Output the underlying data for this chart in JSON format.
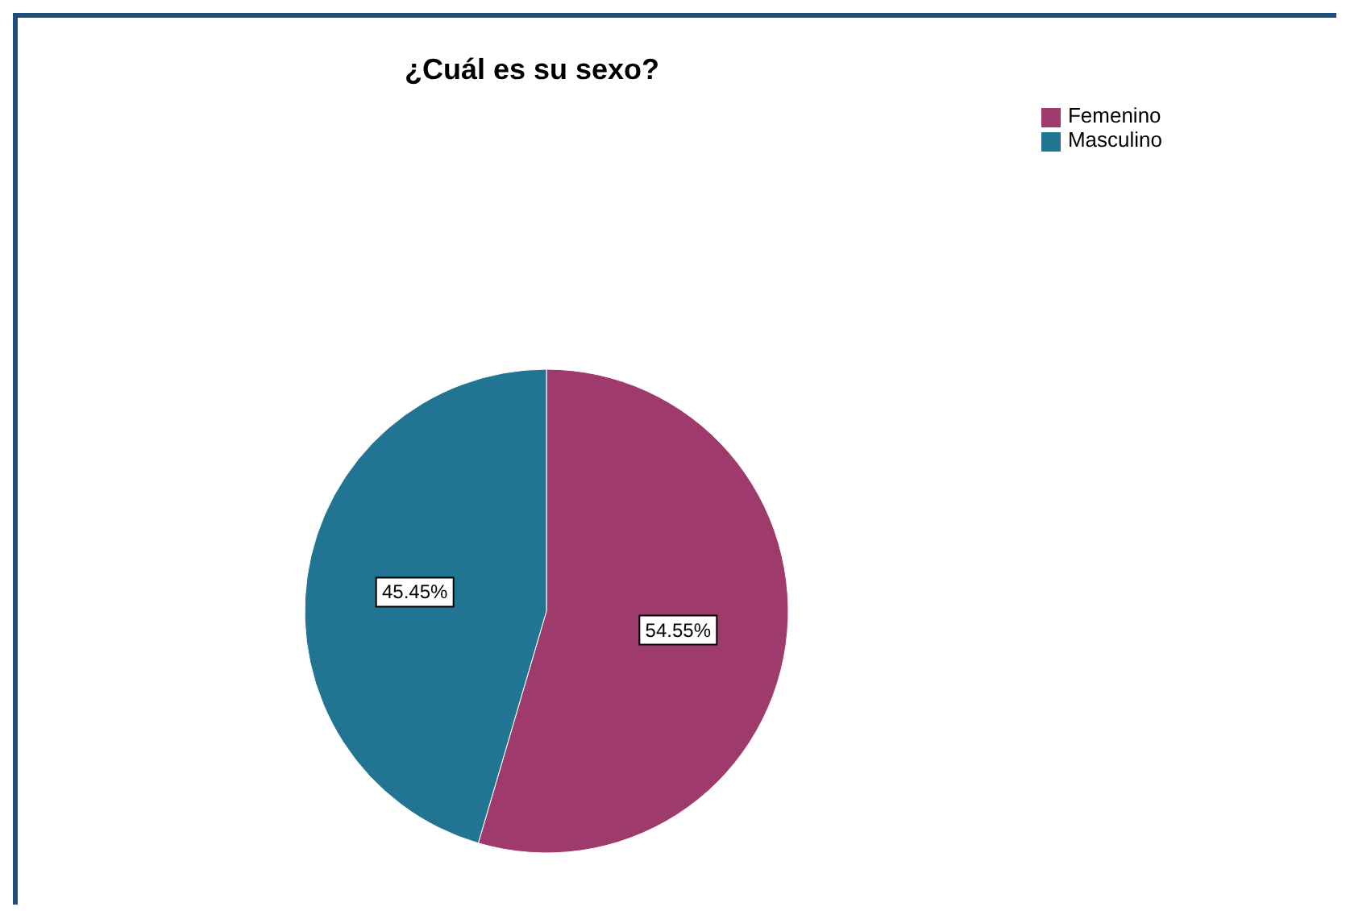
{
  "chart_data": {
    "type": "pie",
    "title": "¿Cuál es su sexo?",
    "categories": [
      "Femenino",
      "Masculino"
    ],
    "values": [
      54.55,
      45.45
    ],
    "colors": [
      "#9e3a6c",
      "#217592"
    ],
    "value_labels": [
      "54.55%",
      "45.45%"
    ],
    "legend": "top right"
  }
}
